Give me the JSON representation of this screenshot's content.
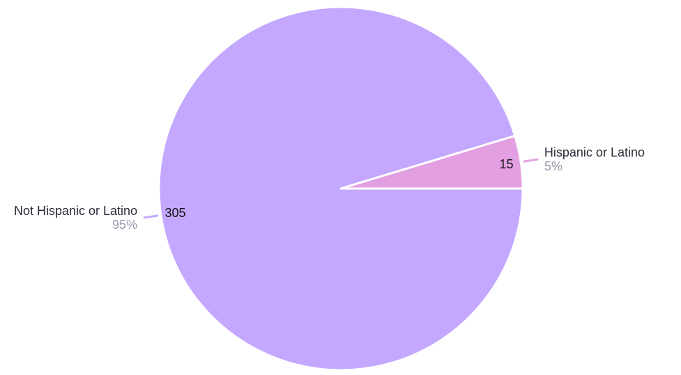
{
  "chart_data": {
    "type": "pie",
    "title": "",
    "slices": [
      {
        "label": "Not Hispanic or Latino",
        "value": 305,
        "percent_label": "95%",
        "color": "#c4a8ff"
      },
      {
        "label": "Hispanic or Latino",
        "value": 15,
        "percent_label": "5%",
        "color": "#e29fe2"
      }
    ],
    "start_angle_deg": 0,
    "direction": "clockwise",
    "slice_border_color": "#ffffff",
    "legend": "none"
  }
}
